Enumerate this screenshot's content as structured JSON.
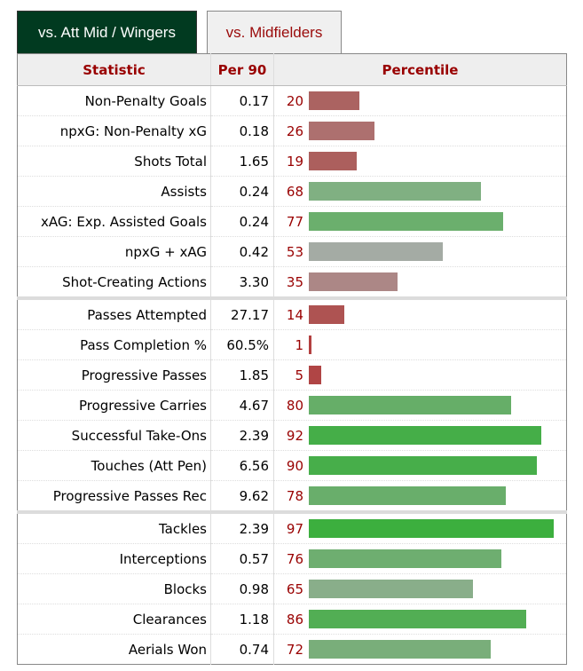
{
  "tabs": [
    {
      "label": "vs. Att Mid / Wingers",
      "active": true
    },
    {
      "label": "vs. Midfielders",
      "active": false
    }
  ],
  "table": {
    "headers": {
      "statistic": "Statistic",
      "per90": "Per 90",
      "percentile": "Percentile"
    },
    "rows": [
      {
        "stat": "Non-Penalty Goals",
        "per90": "0.17",
        "pct": 20,
        "color": "#ab6361",
        "sep": false
      },
      {
        "stat": "npxG: Non-Penalty xG",
        "per90": "0.18",
        "pct": 26,
        "color": "#ad706f",
        "sep": false
      },
      {
        "stat": "Shots Total",
        "per90": "1.65",
        "pct": 19,
        "color": "#ac5f5d",
        "sep": false
      },
      {
        "stat": "Assists",
        "per90": "0.24",
        "pct": 68,
        "color": "#80b082",
        "sep": false
      },
      {
        "stat": "xAG: Exp. Assisted Goals",
        "per90": "0.24",
        "pct": 77,
        "color": "#6baf6d",
        "sep": false
      },
      {
        "stat": "npxG + xAG",
        "per90": "0.42",
        "pct": 53,
        "color": "#a4aba4",
        "sep": false
      },
      {
        "stat": "Shot-Creating Actions",
        "per90": "3.30",
        "pct": 35,
        "color": "#ac8786",
        "sep": false
      },
      {
        "stat": "Passes Attempted",
        "per90": "27.17",
        "pct": 14,
        "color": "#ae5352",
        "sep": true
      },
      {
        "stat": "Pass Completion %",
        "per90": "60.5%",
        "pct": 1,
        "color": "#b34040",
        "sep": false
      },
      {
        "stat": "Progressive Passes",
        "per90": "1.85",
        "pct": 5,
        "color": "#b04545",
        "sep": false
      },
      {
        "stat": "Progressive Carries",
        "per90": "4.67",
        "pct": 80,
        "color": "#66ae68",
        "sep": false
      },
      {
        "stat": "Successful Take-Ons",
        "per90": "2.39",
        "pct": 92,
        "color": "#45ae48",
        "sep": false
      },
      {
        "stat": "Touches (Att Pen)",
        "per90": "6.56",
        "pct": 90,
        "color": "#47ae4a",
        "sep": false
      },
      {
        "stat": "Progressive Passes Rec",
        "per90": "9.62",
        "pct": 78,
        "color": "#69ae6b",
        "sep": false
      },
      {
        "stat": "Tackles",
        "per90": "2.39",
        "pct": 97,
        "color": "#3caf3e",
        "sep": true
      },
      {
        "stat": "Interceptions",
        "per90": "0.57",
        "pct": 76,
        "color": "#6eae70",
        "sep": false
      },
      {
        "stat": "Blocks",
        "per90": "0.98",
        "pct": 65,
        "color": "#89ae8a",
        "sep": false
      },
      {
        "stat": "Clearances",
        "per90": "1.18",
        "pct": 86,
        "color": "#52ae54",
        "sep": false
      },
      {
        "stat": "Aerials Won",
        "per90": "0.74",
        "pct": 72,
        "color": "#79ae7a",
        "sep": false
      }
    ]
  },
  "chart_data": {
    "type": "bar",
    "title": "Percentile",
    "categories": [
      "Non-Penalty Goals",
      "npxG: Non-Penalty xG",
      "Shots Total",
      "Assists",
      "xAG: Exp. Assisted Goals",
      "npxG + xAG",
      "Shot-Creating Actions",
      "Passes Attempted",
      "Pass Completion %",
      "Progressive Passes",
      "Progressive Carries",
      "Successful Take-Ons",
      "Touches (Att Pen)",
      "Progressive Passes Rec",
      "Tackles",
      "Interceptions",
      "Blocks",
      "Clearances",
      "Aerials Won"
    ],
    "values": [
      20,
      26,
      19,
      68,
      77,
      53,
      35,
      14,
      1,
      5,
      80,
      92,
      90,
      78,
      97,
      76,
      65,
      86,
      72
    ],
    "per90": [
      "0.17",
      "0.18",
      "1.65",
      "0.24",
      "0.24",
      "0.42",
      "3.30",
      "27.17",
      "60.5%",
      "1.85",
      "4.67",
      "2.39",
      "6.56",
      "9.62",
      "2.39",
      "0.57",
      "0.98",
      "1.18",
      "0.74"
    ],
    "xlabel": "",
    "ylabel": "",
    "ylim": [
      0,
      100
    ]
  }
}
